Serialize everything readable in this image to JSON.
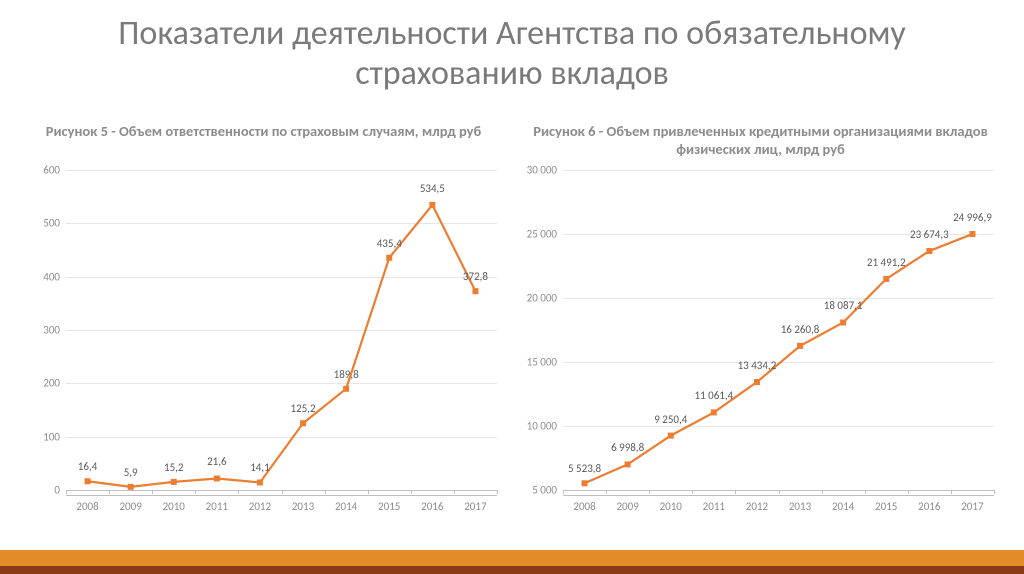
{
  "title": "Показатели деятельности Агентства по обязательному страхованию вкладов",
  "footer": {
    "color_top": "#e28c29",
    "color_bottom": "#8a3a16"
  },
  "chart_left": {
    "type": "line",
    "title": "Рисунок 5  -  Объем ответственности по страховым случаям, млрд руб",
    "categories": [
      "2008",
      "2009",
      "2010",
      "2011",
      "2012",
      "2013",
      "2014",
      "2015",
      "2016",
      "2017"
    ],
    "values": [
      16.4,
      5.9,
      15.2,
      21.6,
      14.1,
      125.2,
      189.8,
      435.4,
      534.5,
      372.8
    ],
    "labels": [
      "16,4",
      "5,9",
      "15,2",
      "21,6",
      "14,1",
      "125,2",
      "189,8",
      "435,4",
      "534,5",
      "372,8"
    ],
    "label_offsets_y": [
      -8,
      -8,
      -8,
      -10,
      -8,
      -8,
      -8,
      -8,
      -10,
      -8
    ],
    "ymin": 0,
    "ymax": 600,
    "ytick_step": 100,
    "yticks": [
      0,
      100,
      200,
      300,
      400,
      500,
      600
    ],
    "line_color": "#ed7d31",
    "marker_fill": "#ed7d31",
    "marker_border": "#ffffff",
    "marker_size": 5,
    "line_width": 2.2,
    "grid_color": "#e6e6e6",
    "axis_color": "#bfbfbf",
    "label_fontsize": 11,
    "title_fontsize": 14.5
  },
  "chart_right": {
    "type": "line",
    "title": "Рисунок 6 - Объем привлеченных кредитными организациями вкладов физических лиц, млрд руб",
    "categories": [
      "2008",
      "2009",
      "2010",
      "2011",
      "2012",
      "2013",
      "2014",
      "2015",
      "2016",
      "2017"
    ],
    "values": [
      5523.8,
      6998.8,
      9250.4,
      11061.4,
      13434.2,
      16260.8,
      18087.1,
      21491.2,
      23674.3,
      24996.9
    ],
    "labels": [
      "5 523,8",
      "6 998,8",
      "9 250,4",
      "11 061,4",
      "13 434,2",
      "16 260,8",
      "18 087,1",
      "21 491,2",
      "23 674,3",
      "24 996,9"
    ],
    "label_offsets_y": [
      -8,
      -10,
      -10,
      -10,
      -10,
      -10,
      -10,
      -10,
      -10,
      -10
    ],
    "ymin": 5000,
    "ymax": 30000,
    "ytick_step": 5000,
    "yticks": [
      5000,
      10000,
      15000,
      20000,
      25000,
      30000
    ],
    "ytick_labels": [
      "5 000",
      "10 000",
      "15 000",
      "20 000",
      "25 000",
      "30 000"
    ],
    "line_color": "#ed7d31",
    "marker_fill": "#ed7d31",
    "marker_border": "#ffffff",
    "marker_size": 5,
    "line_width": 2.2,
    "grid_color": "#e6e6e6",
    "axis_color": "#bfbfbf",
    "label_fontsize": 11,
    "title_fontsize": 14.5
  }
}
